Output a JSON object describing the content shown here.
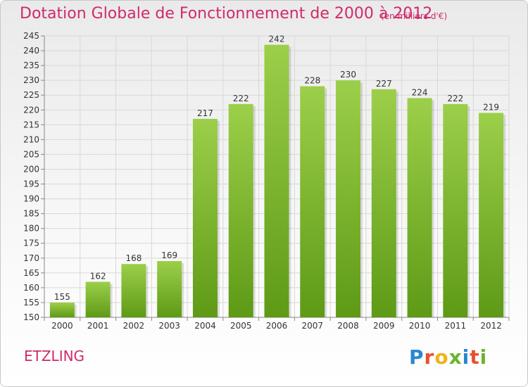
{
  "header": {
    "title": "Dotation Globale de Fonctionnement de 2000 à 2012",
    "unit": "(en milliers d'€)"
  },
  "footer": {
    "city": "ETZLING",
    "logo": "Proxiti"
  },
  "colors": {
    "title": "#d02a6b",
    "bar_top": "#9ccf4a",
    "bar_bottom": "#5e9a16",
    "grid": "#d8d8d8"
  },
  "chart_data": {
    "type": "bar",
    "title": "Dotation Globale de Fonctionnement de 2000 à 2012",
    "xlabel": "",
    "ylabel": "",
    "categories": [
      "2000",
      "2001",
      "2002",
      "2003",
      "2004",
      "2005",
      "2006",
      "2007",
      "2008",
      "2009",
      "2010",
      "2011",
      "2012"
    ],
    "values": [
      155,
      162,
      168,
      169,
      217,
      222,
      242,
      228,
      230,
      227,
      224,
      222,
      219
    ],
    "ylim": [
      150,
      245
    ],
    "ytick_step": 5,
    "grid": true,
    "show_value_labels": true
  }
}
